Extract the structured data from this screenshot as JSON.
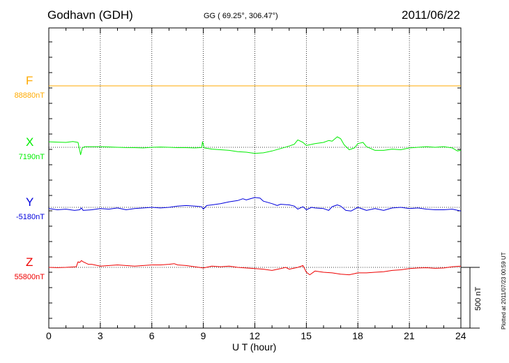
{
  "header": {
    "station": "Godhavn (GDH)",
    "coords": "GG ( 69.25°, 306.47°)",
    "date": "2011/06/22"
  },
  "plotted_note": "Plotted at 2011/07/23 00:59 UT",
  "scale_bar_label": "500 nT",
  "chart_data": {
    "type": "line",
    "xlabel": "U T (hour)",
    "xlim": [
      0,
      24
    ],
    "x_ticks": [
      0,
      3,
      6,
      9,
      12,
      15,
      18,
      21,
      24
    ],
    "grid": true,
    "scale_bar_nT": 500,
    "series": [
      {
        "name": "F",
        "baseline_label": "88880nT",
        "color": "#ffaa00",
        "points": [
          [
            0,
            0
          ],
          [
            24,
            0
          ]
        ]
      },
      {
        "name": "X",
        "baseline_label": "7190nT",
        "color": "#00ee00",
        "points": [
          [
            0,
            45
          ],
          [
            0.5,
            42
          ],
          [
            1.0,
            40
          ],
          [
            1.4,
            47
          ],
          [
            1.7,
            40
          ],
          [
            1.85,
            -60
          ],
          [
            1.95,
            -5
          ],
          [
            2.1,
            5
          ],
          [
            2.5,
            5
          ],
          [
            3,
            5
          ],
          [
            3.5,
            3
          ],
          [
            4,
            0
          ],
          [
            4.5,
            -2
          ],
          [
            5,
            -3
          ],
          [
            5.5,
            -5
          ],
          [
            6,
            0
          ],
          [
            6.5,
            2
          ],
          [
            7,
            0
          ],
          [
            7.5,
            -3
          ],
          [
            8,
            -3
          ],
          [
            8.5,
            -5
          ],
          [
            8.9,
            -2
          ],
          [
            8.95,
            45
          ],
          [
            9.05,
            -5
          ],
          [
            9.5,
            -15
          ],
          [
            10,
            -20
          ],
          [
            10.5,
            -25
          ],
          [
            11,
            -35
          ],
          [
            11.5,
            -40
          ],
          [
            12,
            -50
          ],
          [
            12.5,
            -45
          ],
          [
            13,
            -30
          ],
          [
            13.5,
            -10
          ],
          [
            14,
            10
          ],
          [
            14.3,
            25
          ],
          [
            14.5,
            60
          ],
          [
            14.8,
            40
          ],
          [
            15,
            15
          ],
          [
            15.5,
            30
          ],
          [
            16,
            40
          ],
          [
            16.3,
            55
          ],
          [
            16.5,
            50
          ],
          [
            16.8,
            85
          ],
          [
            17,
            70
          ],
          [
            17.2,
            20
          ],
          [
            17.5,
            -20
          ],
          [
            17.8,
            -5
          ],
          [
            18,
            30
          ],
          [
            18.3,
            40
          ],
          [
            18.5,
            5
          ],
          [
            19,
            -25
          ],
          [
            19.5,
            -25
          ],
          [
            20,
            -15
          ],
          [
            20.5,
            -20
          ],
          [
            21,
            -5
          ],
          [
            21.5,
            0
          ],
          [
            22,
            5
          ],
          [
            22.5,
            0
          ],
          [
            23,
            5
          ],
          [
            23.5,
            -5
          ],
          [
            23.8,
            -30
          ],
          [
            24,
            -25
          ]
        ]
      },
      {
        "name": "Y",
        "baseline_label": "-5180nT",
        "color": "#0000dd",
        "points": [
          [
            0,
            -10
          ],
          [
            0.5,
            -20
          ],
          [
            1.0,
            -15
          ],
          [
            1.5,
            -25
          ],
          [
            1.8,
            -20
          ],
          [
            1.9,
            -5
          ],
          [
            2,
            -25
          ],
          [
            2.5,
            -20
          ],
          [
            3,
            -10
          ],
          [
            3.5,
            -15
          ],
          [
            4,
            -5
          ],
          [
            4.5,
            -20
          ],
          [
            5,
            -10
          ],
          [
            5.5,
            -5
          ],
          [
            6,
            0
          ],
          [
            6.5,
            -5
          ],
          [
            7,
            0
          ],
          [
            7.5,
            10
          ],
          [
            8,
            15
          ],
          [
            8.5,
            10
          ],
          [
            8.9,
            5
          ],
          [
            9.0,
            -15
          ],
          [
            9.2,
            15
          ],
          [
            9.5,
            20
          ],
          [
            10,
            30
          ],
          [
            10.5,
            45
          ],
          [
            11,
            55
          ],
          [
            11.3,
            70
          ],
          [
            11.5,
            60
          ],
          [
            12,
            80
          ],
          [
            12.3,
            75
          ],
          [
            12.5,
            50
          ],
          [
            13,
            30
          ],
          [
            13.3,
            15
          ],
          [
            13.5,
            25
          ],
          [
            14,
            20
          ],
          [
            14.3,
            10
          ],
          [
            14.5,
            -15
          ],
          [
            14.8,
            5
          ],
          [
            15,
            -20
          ],
          [
            15.3,
            0
          ],
          [
            15.5,
            -5
          ],
          [
            16,
            -10
          ],
          [
            16.3,
            -25
          ],
          [
            16.5,
            5
          ],
          [
            16.8,
            20
          ],
          [
            17,
            10
          ],
          [
            17.3,
            -25
          ],
          [
            17.6,
            -30
          ],
          [
            18,
            0
          ],
          [
            18.5,
            -25
          ],
          [
            19,
            -10
          ],
          [
            19.5,
            -25
          ],
          [
            20,
            -5
          ],
          [
            20.5,
            0
          ],
          [
            21,
            -10
          ],
          [
            21.5,
            -5
          ],
          [
            22,
            -15
          ],
          [
            22.5,
            -20
          ],
          [
            23,
            -20
          ],
          [
            23.5,
            -15
          ],
          [
            24,
            -30
          ]
        ]
      },
      {
        "name": "Z",
        "baseline_label": "55800nT",
        "color": "#ee0000",
        "points": [
          [
            0,
            0
          ],
          [
            0.5,
            -2
          ],
          [
            1,
            0
          ],
          [
            1.6,
            5
          ],
          [
            1.7,
            45
          ],
          [
            1.8,
            40
          ],
          [
            1.9,
            55
          ],
          [
            2.0,
            45
          ],
          [
            2.3,
            25
          ],
          [
            2.5,
            25
          ],
          [
            3,
            10
          ],
          [
            3.5,
            15
          ],
          [
            4,
            20
          ],
          [
            4.5,
            15
          ],
          [
            5,
            10
          ],
          [
            5.5,
            15
          ],
          [
            6,
            20
          ],
          [
            6.5,
            20
          ],
          [
            7,
            25
          ],
          [
            7.3,
            30
          ],
          [
            7.5,
            20
          ],
          [
            8,
            15
          ],
          [
            8.5,
            5
          ],
          [
            9,
            -5
          ],
          [
            9.5,
            10
          ],
          [
            10,
            5
          ],
          [
            10.5,
            10
          ],
          [
            11,
            0
          ],
          [
            11.5,
            -5
          ],
          [
            12,
            -10
          ],
          [
            12.5,
            -15
          ],
          [
            13,
            -25
          ],
          [
            13.5,
            -10
          ],
          [
            13.8,
            0
          ],
          [
            14,
            -15
          ],
          [
            14.5,
            0
          ],
          [
            14.8,
            15
          ],
          [
            15,
            -40
          ],
          [
            15.2,
            -60
          ],
          [
            15.5,
            -30
          ],
          [
            16,
            -40
          ],
          [
            16.5,
            -45
          ],
          [
            17,
            -55
          ],
          [
            17.5,
            -60
          ],
          [
            18,
            -45
          ],
          [
            18.5,
            -45
          ],
          [
            19,
            -40
          ],
          [
            19.5,
            -35
          ],
          [
            20,
            -25
          ],
          [
            20.5,
            -20
          ],
          [
            21,
            -10
          ],
          [
            21.5,
            -5
          ],
          [
            22,
            -3
          ],
          [
            22.5,
            -8
          ],
          [
            23,
            -5
          ],
          [
            23.5,
            5
          ],
          [
            24,
            10
          ]
        ]
      }
    ]
  }
}
